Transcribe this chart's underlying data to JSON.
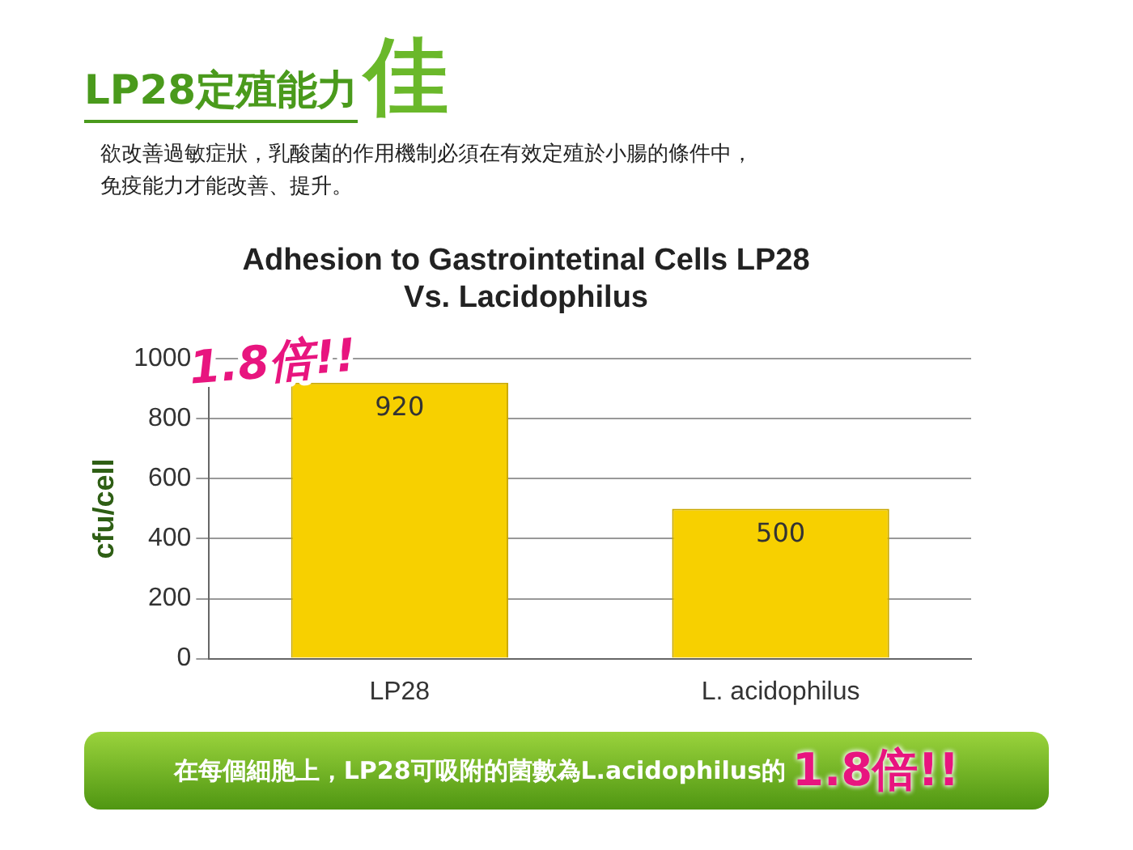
{
  "chart_data": {
    "type": "bar",
    "title": "Adhesion to Gastrointetinal Cells LP28\nVs. Lacidophilus",
    "ylabel": "cfu/cell",
    "categories": [
      "LP28",
      "L. acidophilus"
    ],
    "values": [
      920,
      500
    ],
    "color": "#f7d000",
    "ylim": [
      0,
      1000
    ],
    "yticks": [
      0,
      200,
      400,
      600,
      800,
      1000
    ],
    "grid": "y",
    "legend": false,
    "data_labels": true,
    "annotations": [
      "LP28定殖能力",
      "佳",
      "欲改善過敏症狀，乳酸菌的作用機制必須在有效定殖於小腸的條件中，",
      "免疫能力才能改善、提升。",
      "1.8倍!!",
      "在每個細胞上，LP28可吸附的菌數為L.acidophilus的",
      "1.8倍!!"
    ]
  }
}
